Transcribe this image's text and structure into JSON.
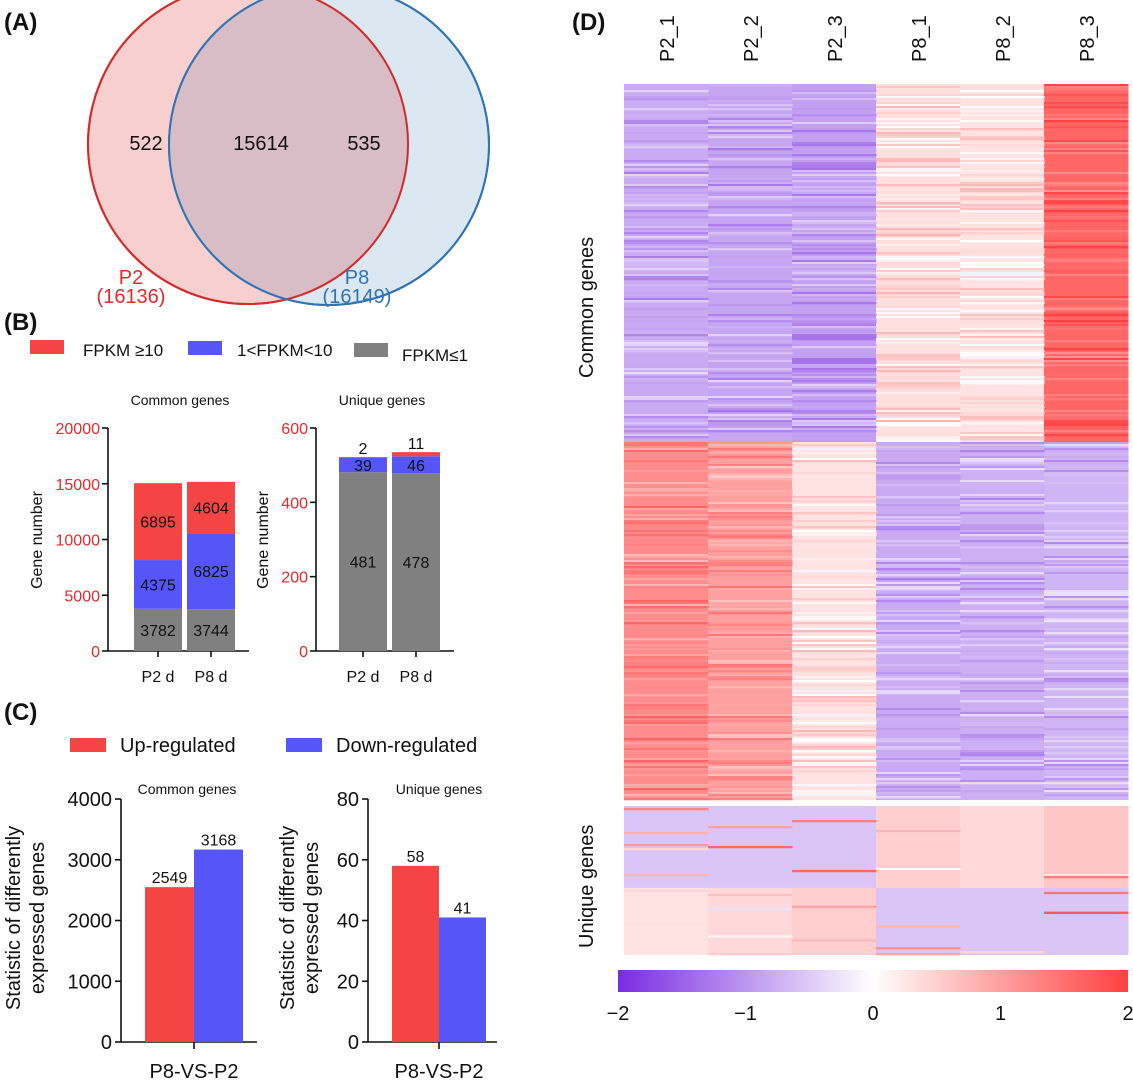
{
  "colors": {
    "p2_circle": "#d42a2a",
    "p2_fill": "#f7cfcf",
    "p8_circle": "#2f74b5",
    "p8_fill": "#d9e6f0",
    "overlap_fill": "#d8bcc6",
    "fpkm_high": "#f44444",
    "fpkm_mid": "#5656f8",
    "fpkm_low": "#808080",
    "up": "#f44444",
    "down": "#5656f8",
    "heat_low": "#7a2ce0",
    "heat_mid": "#ffffff",
    "heat_high": "#ff4040",
    "axis_red": "#e8282b"
  },
  "panels": {
    "A": "(A)",
    "B": "(B)",
    "C": "(C)",
    "D": "(D)"
  },
  "chart_data": [
    {
      "type": "venn",
      "panel": "A",
      "sets": [
        {
          "name": "P2",
          "total_label": "(16136)",
          "total": 16136
        },
        {
          "name": "P8",
          "total_label": "(16149)",
          "total": 16149
        }
      ],
      "only_left": 522,
      "intersection": 15614,
      "only_right": 535
    },
    {
      "type": "bar",
      "stacked": true,
      "panel": "B",
      "title": "Common genes",
      "ylabel": "Gene   number",
      "ylim": [
        0,
        20000
      ],
      "yticks": [
        0,
        5000,
        10000,
        15000,
        20000
      ],
      "categories": [
        "P2 d",
        "P8 d"
      ],
      "series": [
        {
          "name": "FPKM≤1",
          "color_key": "fpkm_low",
          "values": [
            3782,
            3744
          ]
        },
        {
          "name": "1<FPKM<10",
          "color_key": "fpkm_mid",
          "values": [
            4375,
            6825
          ]
        },
        {
          "name": "FPKM ≥10",
          "color_key": "fpkm_high",
          "values": [
            6895,
            4604
          ]
        }
      ]
    },
    {
      "type": "bar",
      "stacked": true,
      "panel": "B",
      "title": "Unique genes",
      "ylabel": "Gene   number",
      "ylim": [
        0,
        600
      ],
      "yticks": [
        0,
        200,
        400,
        600
      ],
      "categories": [
        "P2 d",
        "P8 d"
      ],
      "series": [
        {
          "name": "FPKM≤1",
          "color_key": "fpkm_low",
          "values": [
            481,
            478
          ]
        },
        {
          "name": "1<FPKM<10",
          "color_key": "fpkm_mid",
          "values": [
            39,
            46
          ]
        },
        {
          "name": "FPKM ≥10",
          "color_key": "fpkm_high",
          "values": [
            2,
            11
          ]
        }
      ]
    },
    {
      "type": "bar",
      "panel": "C",
      "title": "Common genes",
      "ylabel": "Statistic of differently expressed genes",
      "ylim": [
        0,
        4000
      ],
      "yticks": [
        0,
        1000,
        2000,
        3000,
        4000
      ],
      "categories": [
        "P8-VS-P2"
      ],
      "series": [
        {
          "name": "Up-regulated",
          "color_key": "up",
          "values": [
            2549
          ]
        },
        {
          "name": "Down-regulated",
          "color_key": "down",
          "values": [
            3168
          ]
        }
      ]
    },
    {
      "type": "bar",
      "panel": "C",
      "title": "Unique genes",
      "ylabel": "Statistic of differently expressed genes",
      "ylim": [
        0,
        80
      ],
      "yticks": [
        0,
        20,
        40,
        60,
        80
      ],
      "categories": [
        "P8-VS-P2"
      ],
      "series": [
        {
          "name": "Up-regulated",
          "color_key": "up",
          "values": [
            58
          ]
        },
        {
          "name": "Down-regulated",
          "color_key": "down",
          "values": [
            41
          ]
        }
      ]
    },
    {
      "type": "heatmap",
      "panel": "D",
      "columns": [
        "P2_1",
        "P2_2",
        "P2_3",
        "P8_1",
        "P8_2",
        "P8_3"
      ],
      "row_groups": [
        "Common genes",
        "Unique genes"
      ],
      "colorbar": {
        "min": -2,
        "max": 2,
        "ticks": [
          -2,
          -1,
          0,
          1,
          2
        ],
        "tick_labels": [
          "−2",
          "−1",
          "0",
          "1",
          "2"
        ]
      },
      "common_blocks": [
        {
          "rows_fraction": 0.5,
          "levels": [
            -0.8,
            -0.85,
            -0.9,
            0.35,
            0.3,
            1.6
          ]
        },
        {
          "rows_fraction": 0.5,
          "levels": [
            1.2,
            1.0,
            0.3,
            -0.8,
            -0.75,
            -0.7
          ]
        }
      ],
      "unique_blocks": [
        {
          "rows_fraction": 0.55,
          "levels": [
            -0.55,
            -0.55,
            -0.55,
            0.5,
            0.4,
            0.6
          ]
        },
        {
          "rows_fraction": 0.45,
          "levels": [
            0.3,
            0.4,
            0.5,
            -0.55,
            -0.55,
            -0.55
          ]
        }
      ]
    }
  ],
  "legend_b": [
    {
      "label": "FPKM ≥10",
      "color_key": "fpkm_high"
    },
    {
      "label": "1<FPKM<10",
      "color_key": "fpkm_mid"
    },
    {
      "label": "FPKM≤1",
      "color_key": "fpkm_low"
    }
  ],
  "legend_c": [
    {
      "label": "Up-regulated",
      "color_key": "up"
    },
    {
      "label": "Down-regulated",
      "color_key": "down"
    }
  ]
}
